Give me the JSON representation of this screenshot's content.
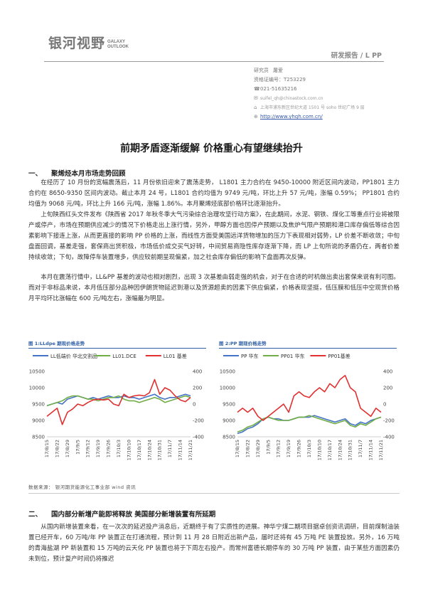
{
  "header": {
    "logo_cn": "银河视野",
    "logo_en_1": "GALAXY",
    "logo_en_2": "OUTLOOK",
    "report_type": "研发报告 / L PP",
    "analyst_label": "研究员",
    "analyst_name": "屠爱",
    "cert": "资格证编号：T253229",
    "phone": "021-51635216",
    "email": "suifel_qh@chinastock.com.cn",
    "address": "上海市浦东新区世纪大道 1501 号 soho 世纪广场 9 层",
    "website": "http://www.yhqh.com.cn/"
  },
  "title": "前期矛盾逐渐缓解 价格重心有望继续抬升",
  "section1": {
    "num": "一、",
    "heading": "聚烯烃本月市场走势回顾",
    "p1": "在经历了 10 月份的宽幅震荡后，11 月份依旧迎来了震荡走势， L1801 主力合约在 9450-10000 附近区间内波动，PP1801 主力合约在 8650-9350 区间内波动。截止本月 24 号，L1801 合约均值为 9749 元/吨，环比上升 57 元/吨，涨幅 0.59%； PP1801 合约均值为 9068 元/吨，环比上升 166 元/吨，涨幅 1.86%。本月聚烯烃底部价格环比逐渐抬升。",
    "p2": "上旬陕西红头文件发布《陕西省 2017 年秋冬季大气污染综合治理攻坚行动方案》，在此期间，水泥、钢铁、煤化工等重点行业将被限产或停产，市场在预期供应减少的情况下价格走出上涨行情，另外，甲醇方面也因停产预期以及焦炉气限产预期和港口库存偏低等综合因素影响下接连上涨，从而更直接的影响 PP 价格的上涨，而线性方面受美国远洋货物增加的压力下表现相对弱势，LP 价差不断收敛；中旬盘面回调，基差走强，套保商出货积极，市场低价成交买气好转，中间贸易商隐性库存逐渐下降，而 LP 上旬所说的矛盾仍在，两者价差持续收敛；下旬，故障停车装置增多，供应较前期呈现偏紧，加之社会库存偏低的影响下盘面再次反弹。",
    "p3": "本月在震荡行情中，LL&PP 基差的波动也相对剧烈，出现 3 次基差由弱走强的机会，对于在合适的时机做出卖出套保来说有利可图。而对于非标品来说，本月低压部分品种因伊朗货物延迟到港以及货源超卖的因素下供应偏紧，价格表现坚挺，低压膜和低压中空现货价格月平均环比涨幅在 600 元/吨左右，涨幅最为明显。"
  },
  "charts": [
    {
      "caption": "图 1:LLdpe 期现价格走势",
      "chart_data": {
        "type": "line",
        "x": [
          "17/8/15",
          "17/8/18",
          "17/8/22",
          "17/8/25",
          "17/8/29",
          "17/9/1",
          "17/9/5",
          "17/9/8",
          "17/9/12",
          "17/9/15",
          "17/9/19",
          "17/9/22",
          "17/9/26",
          "17/9/29",
          "17/10/3",
          "17/10/6",
          "17/10/10",
          "17/10/13",
          "17/10/17",
          "17/10/20",
          "17/10/24",
          "17/10/27",
          "17/10/31",
          "17/11/3",
          "17/11/7",
          "17/11/10",
          "17/11/14",
          "17/11/17",
          "17/11/21"
        ],
        "x_tick_labels": [
          "17/8/15",
          "17/8/22",
          "17/8/29",
          "17/9/5",
          "17/9/12",
          "17/9/19",
          "17/9/26",
          "17/10/3",
          "17/10/10",
          "17/10/17",
          "17/10/24",
          "17/10/31",
          "17/11/7",
          "17/11/14",
          "17/11/21"
        ],
        "series": [
          {
            "name": "LL低端价 华北交割品",
            "axis": "left",
            "color": "#4472c4",
            "values": [
              9450,
              9500,
              9550,
              9500,
              9650,
              9700,
              9750,
              9700,
              9650,
              9700,
              9650,
              9700,
              9750,
              9700,
              9700,
              9750,
              9700,
              9700,
              9650,
              9700,
              9750,
              9800,
              9700,
              9650,
              9700,
              9700,
              9750,
              9800,
              9750
            ]
          },
          {
            "name": "LL01.DCE",
            "axis": "left",
            "color": "#70ad47",
            "values": [
              9450,
              9500,
              9550,
              9600,
              9700,
              9750,
              9750,
              9700,
              9650,
              9650,
              9600,
              9650,
              9700,
              9700,
              9750,
              9650,
              9600,
              9600,
              9550,
              9600,
              9650,
              9700,
              9650,
              9550,
              9600,
              9650,
              9700,
              9750,
              9700
            ]
          },
          {
            "name": "LL01 基差",
            "axis": "right",
            "color": "#e03030",
            "values": [
              -150,
              -100,
              -50,
              -250,
              -100,
              -60,
              0,
              -20,
              20,
              50,
              60,
              50,
              60,
              0,
              -20,
              120,
              80,
              100,
              110,
              100,
              140,
              300,
              120,
              200,
              170,
              100,
              50,
              30,
              80
            ]
          }
        ],
        "y_left_ticks": [
          8500,
          9000,
          9500,
          10000,
          10500
        ],
        "y_left_range": [
          8500,
          10500
        ],
        "y_right_ticks": [
          -400,
          -200,
          0,
          200,
          400
        ],
        "y_right_range": [
          -400,
          400
        ]
      }
    },
    {
      "caption": "图 2:PP 期现价格走势",
      "chart_data": {
        "type": "line",
        "x": [
          "17/8/15",
          "17/8/18",
          "17/8/22",
          "17/8/25",
          "17/8/29",
          "17/9/1",
          "17/9/5",
          "17/9/8",
          "17/9/12",
          "17/9/15",
          "17/9/19",
          "17/9/22",
          "17/9/26",
          "17/9/29",
          "17/10/3",
          "17/10/6",
          "17/10/10",
          "17/10/13",
          "17/10/17",
          "17/10/20",
          "17/10/24",
          "17/10/27",
          "17/10/31",
          "17/11/3",
          "17/11/7",
          "17/11/10",
          "17/11/14",
          "17/11/17",
          "17/11/21"
        ],
        "x_tick_labels": [
          "17/8/15",
          "17/8/22",
          "17/8/29",
          "17/9/5",
          "17/9/12",
          "17/9/19",
          "17/9/26",
          "17/10/3",
          "17/10/10",
          "17/10/17",
          "17/10/24",
          "17/10/31",
          "17/11/7",
          "17/11/14",
          "17/11/21"
        ],
        "series": [
          {
            "name": "PP 华东",
            "axis": "left",
            "color": "#4472c4",
            "values": [
              8600,
              8650,
              8750,
              8800,
              8900,
              9050,
              9100,
              9050,
              9050,
              9000,
              9000,
              9050,
              9100,
              9100,
              9100,
              9150,
              9100,
              9050,
              9000,
              8950,
              9000,
              9050,
              8900,
              8850,
              8950,
              8900,
              9000,
              9050,
              9100
            ]
          },
          {
            "name": "PP01 华东",
            "axis": "left",
            "color": "#70ad47",
            "values": [
              8650,
              8700,
              8800,
              8850,
              8950,
              9050,
              9100,
              9050,
              9000,
              9000,
              9000,
              9050,
              9100,
              9100,
              9150,
              9100,
              9050,
              9000,
              8950,
              8900,
              8950,
              9000,
              8850,
              8800,
              8900,
              8850,
              8950,
              9050,
              9100
            ]
          },
          {
            "name": "PP01基差",
            "axis": "right",
            "color": "#e03030",
            "values": [
              -100,
              -50,
              -100,
              -50,
              -150,
              -200,
              -150,
              -100,
              -50,
              0,
              -100,
              100,
              150,
              100,
              80,
              150,
              200,
              150,
              250,
              200,
              300,
              350,
              200,
              150,
              -50,
              -100,
              -150,
              -50,
              -100
            ]
          }
        ],
        "y_left_ticks": [
          8500,
          9000,
          9500,
          10000,
          10500
        ],
        "y_left_range": [
          8500,
          10500
        ],
        "y_right_ticks": [
          -400,
          -200,
          0,
          200,
          400
        ],
        "y_right_range": [
          -400,
          400
        ]
      }
    }
  ],
  "source": "数据来源： 银河期货能源化工事业部 wind 资讯",
  "section2": {
    "num": "二、",
    "heading": "国内部分新增产能即将释放 美国部分新增装置有所延期",
    "p1": "从国内新增装置来看，在一次次的延迟投产消息后，近期终于有了实质性的进展。神华宁煤二期项目据卓创资讯调研，目前煤制油装置已经开车，60 万吨/年 PP 装置正在打通流程，预计到 11 月 28 日附近出新产品，届时还将有 45 万吨 PE 装置投放。另外，16 万吨的青海盐湖 PP 新装置和 15 万吨的云天化 PP 装置也将于下周左右投产。而常州富德长期停车的 30 万吨 PP 装置，由于某些方面因素仍未到位，预计复产时间仍将推迟"
  }
}
